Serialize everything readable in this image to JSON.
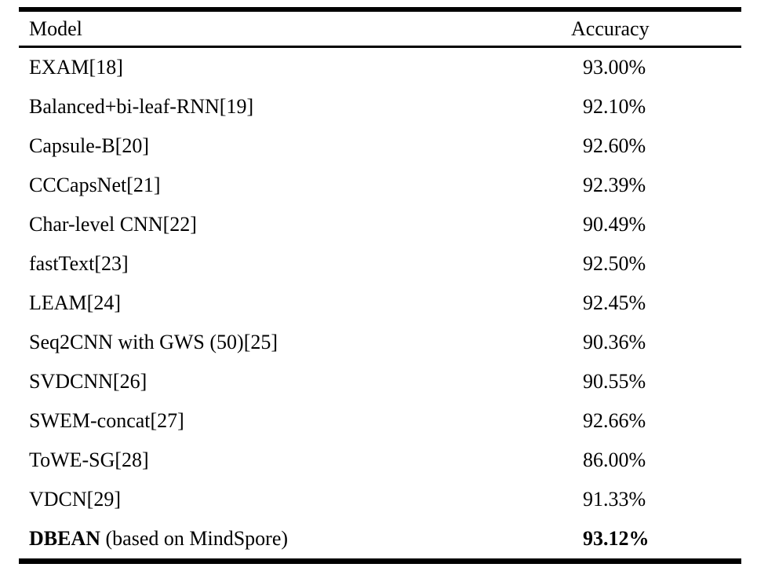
{
  "table": {
    "header": {
      "model": "Model",
      "accuracy": "Accuracy"
    },
    "rows": [
      {
        "model_strong": "",
        "model_text": "EXAM[18]",
        "accuracy": "93.00%"
      },
      {
        "model_strong": "",
        "model_text": "Balanced+bi-leaf-RNN[19]",
        "accuracy": "92.10%"
      },
      {
        "model_strong": "",
        "model_text": "Capsule-B[20]",
        "accuracy": "92.60%"
      },
      {
        "model_strong": "",
        "model_text": "CCCapsNet[21]",
        "accuracy": "92.39%"
      },
      {
        "model_strong": "",
        "model_text": "Char-level CNN[22]",
        "accuracy": "90.49%"
      },
      {
        "model_strong": "",
        "model_text": "fastText[23]",
        "accuracy": "92.50%"
      },
      {
        "model_strong": "",
        "model_text": "LEAM[24]",
        "accuracy": "92.45%"
      },
      {
        "model_strong": "",
        "model_text": "Seq2CNN with GWS (50)[25]",
        "accuracy": "90.36%"
      },
      {
        "model_strong": "",
        "model_text": "SVDCNN[26]",
        "accuracy": "90.55%"
      },
      {
        "model_strong": "",
        "model_text": "SWEM-concat[27]",
        "accuracy": "92.66%"
      },
      {
        "model_strong": "",
        "model_text": "ToWE-SG[28]",
        "accuracy": "86.00%"
      },
      {
        "model_strong": "",
        "model_text": "VDCN[29]",
        "accuracy": "91.33%"
      },
      {
        "model_strong": "DBEAN",
        "model_text": " (based on MindSpore)",
        "accuracy": "93.12%"
      }
    ],
    "colors": {
      "text": "#000000",
      "rule": "#000000",
      "background": "#ffffff"
    }
  }
}
